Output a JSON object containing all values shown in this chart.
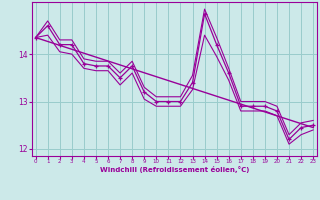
{
  "xlabel": "Windchill (Refroidissement éolien,°C)",
  "background_color": "#cce9e9",
  "line_color": "#990099",
  "grid_color": "#99cccc",
  "hours": [
    0,
    1,
    2,
    3,
    4,
    5,
    6,
    7,
    8,
    9,
    10,
    11,
    12,
    13,
    14,
    15,
    16,
    17,
    18,
    19,
    20,
    21,
    22,
    23
  ],
  "main_values": [
    14.35,
    14.6,
    14.2,
    14.2,
    13.8,
    13.75,
    13.75,
    13.5,
    13.75,
    13.2,
    13.0,
    13.0,
    13.0,
    13.4,
    14.85,
    14.2,
    13.6,
    12.9,
    12.9,
    12.9,
    12.8,
    12.2,
    12.45,
    12.5
  ],
  "min_values": [
    14.35,
    14.4,
    14.05,
    14.0,
    13.7,
    13.65,
    13.65,
    13.35,
    13.6,
    13.05,
    12.9,
    12.9,
    12.9,
    13.25,
    14.4,
    13.95,
    13.45,
    12.8,
    12.8,
    12.8,
    12.7,
    12.1,
    12.3,
    12.4
  ],
  "max_values": [
    14.35,
    14.7,
    14.3,
    14.3,
    13.9,
    13.85,
    13.85,
    13.6,
    13.85,
    13.3,
    13.1,
    13.1,
    13.1,
    13.55,
    14.95,
    14.35,
    13.7,
    13.0,
    13.0,
    13.0,
    12.9,
    12.3,
    12.55,
    12.6
  ],
  "trend_x": [
    0,
    23
  ],
  "trend_y": [
    14.35,
    12.45
  ],
  "ylim": [
    11.85,
    15.1
  ],
  "xlim": [
    -0.3,
    23.3
  ],
  "yticks": [
    12,
    13,
    14
  ],
  "xticks": [
    0,
    1,
    2,
    3,
    4,
    5,
    6,
    7,
    8,
    9,
    10,
    11,
    12,
    13,
    14,
    15,
    16,
    17,
    18,
    19,
    20,
    21,
    22,
    23
  ]
}
